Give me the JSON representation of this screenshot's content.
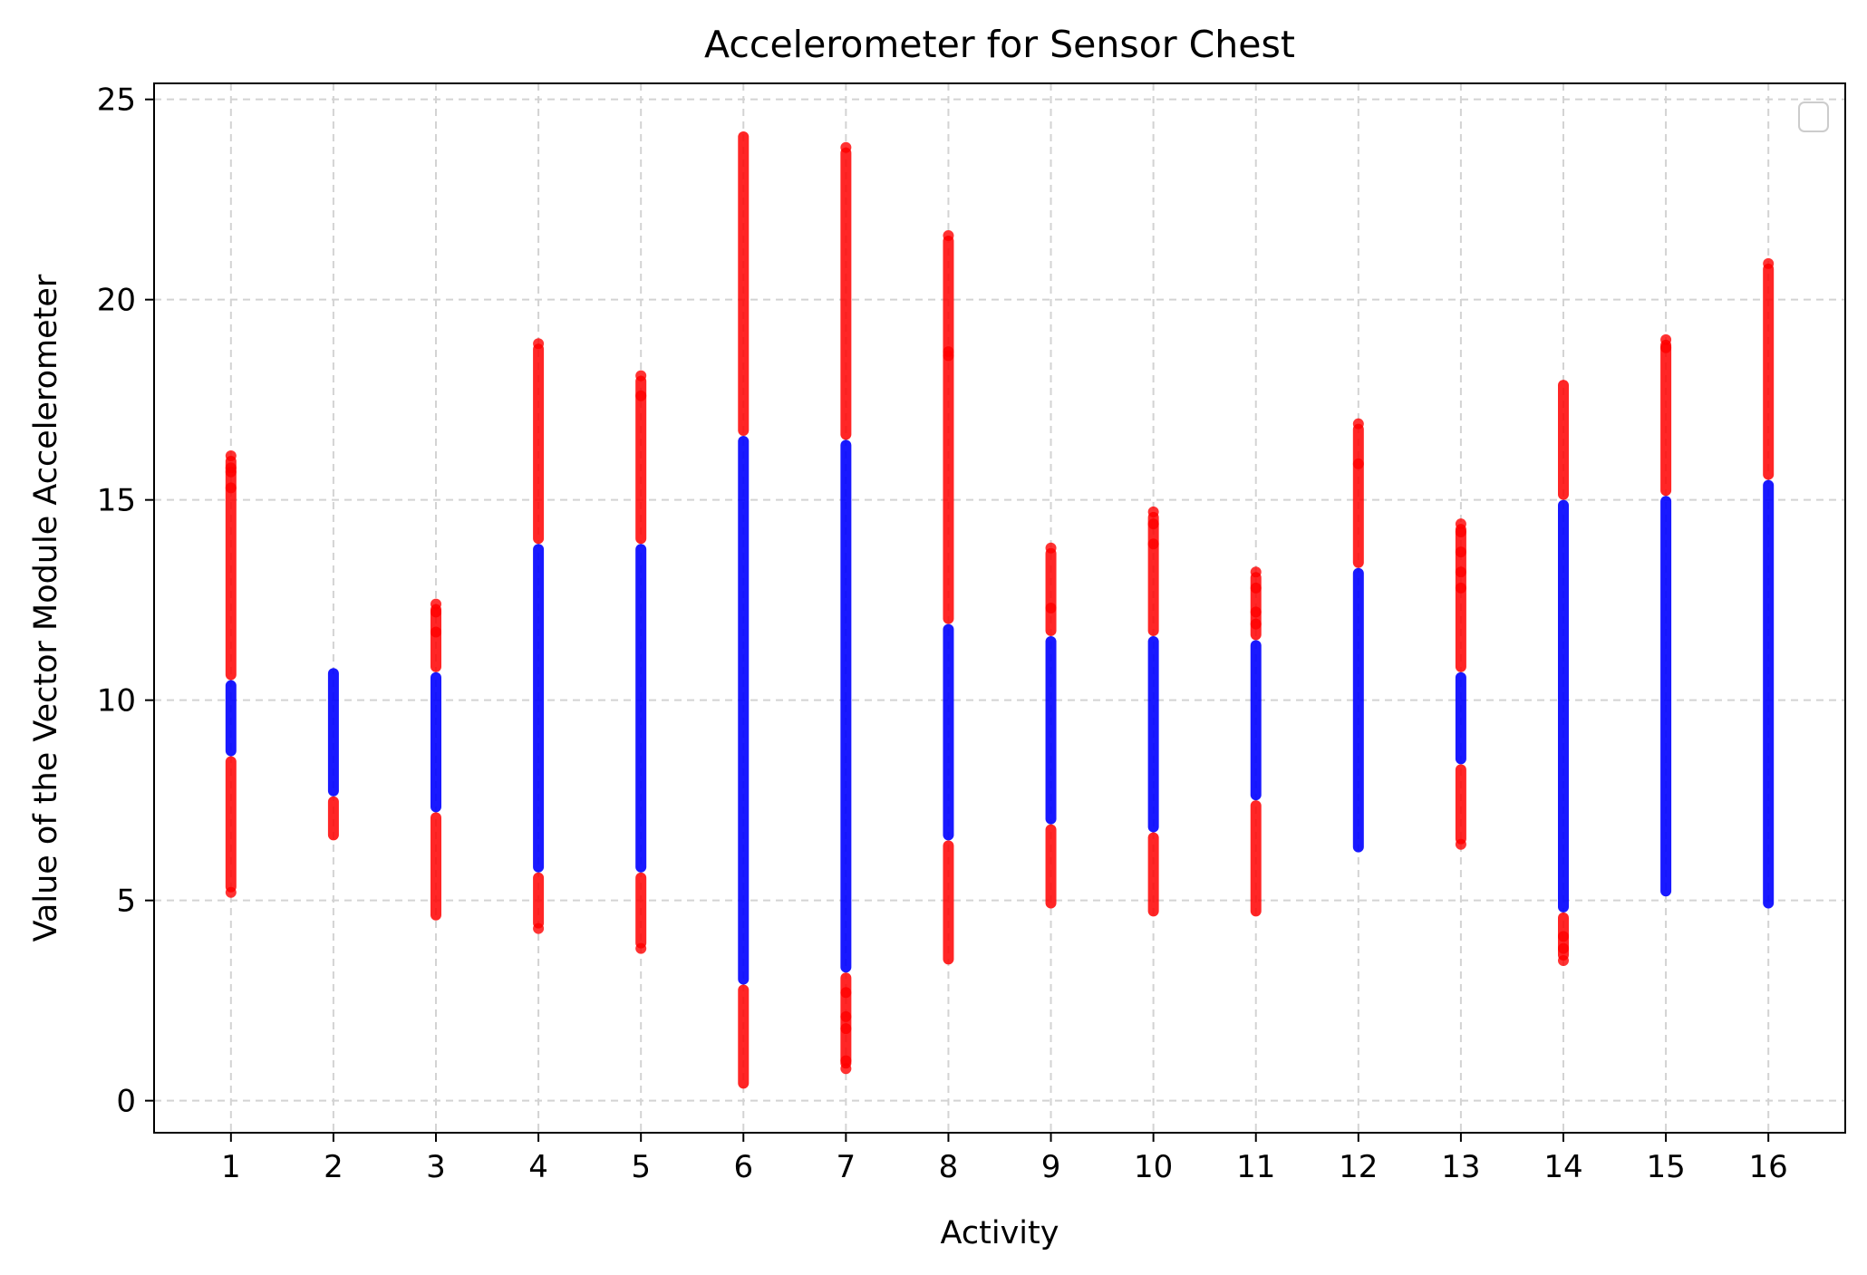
{
  "chart_data": {
    "type": "scatter",
    "title": "Accelerometer for Sensor Chest",
    "xlabel": "Activity",
    "ylabel": "Value of the Vector Module Accelerometer",
    "xlim": [
      0.25,
      16.75
    ],
    "ylim": [
      -0.8,
      25.4
    ],
    "x_ticks": [
      1,
      2,
      3,
      4,
      5,
      6,
      7,
      8,
      9,
      10,
      11,
      12,
      13,
      14,
      15,
      16
    ],
    "y_ticks": [
      0,
      5,
      10,
      15,
      20,
      25
    ],
    "grid": true,
    "legend": "top-right (empty)",
    "colors": {
      "outside_band": "#ff0000",
      "inside_band": "#0000ff",
      "grid": "#d3d3d3"
    },
    "series": [
      {
        "activity": 1,
        "min": 5.2,
        "max": 16.1,
        "band_low": 8.6,
        "band_high": 10.5,
        "outliers": [
          5.2,
          15.3,
          15.7,
          15.8,
          16.1
        ]
      },
      {
        "activity": 2,
        "min": 6.5,
        "max": 10.8,
        "band_low": 7.6,
        "band_high": 10.8,
        "outliers": []
      },
      {
        "activity": 3,
        "min": 4.5,
        "max": 12.4,
        "band_low": 7.2,
        "band_high": 10.7,
        "outliers": [
          11.7,
          12.2,
          12.4
        ]
      },
      {
        "activity": 4,
        "min": 4.3,
        "max": 18.9,
        "band_low": 5.7,
        "band_high": 13.9,
        "outliers": [
          4.3,
          18.9
        ]
      },
      {
        "activity": 5,
        "min": 3.8,
        "max": 18.1,
        "band_low": 5.7,
        "band_high": 13.9,
        "outliers": [
          3.8,
          17.6,
          18.1
        ]
      },
      {
        "activity": 6,
        "min": 0.3,
        "max": 24.2,
        "band_low": 2.9,
        "band_high": 16.6,
        "outliers": []
      },
      {
        "activity": 7,
        "min": 0.8,
        "max": 23.8,
        "band_low": 3.2,
        "band_high": 16.5,
        "outliers": [
          0.8,
          1.0,
          1.8,
          2.1,
          2.7,
          23.8
        ]
      },
      {
        "activity": 8,
        "min": 3.4,
        "max": 21.6,
        "band_low": 6.5,
        "band_high": 11.9,
        "outliers": [
          18.6,
          18.7,
          21.6
        ]
      },
      {
        "activity": 9,
        "min": 4.8,
        "max": 13.8,
        "band_low": 6.9,
        "band_high": 11.6,
        "outliers": [
          12.3,
          13.8
        ]
      },
      {
        "activity": 10,
        "min": 4.6,
        "max": 14.7,
        "band_low": 6.7,
        "band_high": 11.6,
        "outliers": [
          13.9,
          14.4,
          14.7
        ]
      },
      {
        "activity": 11,
        "min": 4.6,
        "max": 13.2,
        "band_low": 7.5,
        "band_high": 11.5,
        "outliers": [
          11.9,
          12.2,
          12.8,
          13.2
        ]
      },
      {
        "activity": 12,
        "min": 6.2,
        "max": 16.9,
        "band_low": 6.2,
        "band_high": 13.3,
        "outliers": [
          15.9,
          16.9
        ]
      },
      {
        "activity": 13,
        "min": 6.4,
        "max": 14.4,
        "band_low": 8.4,
        "band_high": 10.7,
        "outliers": [
          6.4,
          12.8,
          13.2,
          13.7,
          14.2,
          14.4
        ]
      },
      {
        "activity": 14,
        "min": 3.5,
        "max": 18.0,
        "band_low": 4.7,
        "band_high": 15.0,
        "outliers": [
          3.5,
          3.8,
          4.1
        ]
      },
      {
        "activity": 15,
        "min": 5.1,
        "max": 19.0,
        "band_low": 5.1,
        "band_high": 15.1,
        "outliers": [
          18.8,
          19.0
        ]
      },
      {
        "activity": 16,
        "min": 4.8,
        "max": 20.9,
        "band_low": 4.8,
        "band_high": 15.5,
        "outliers": [
          20.9
        ]
      }
    ]
  }
}
